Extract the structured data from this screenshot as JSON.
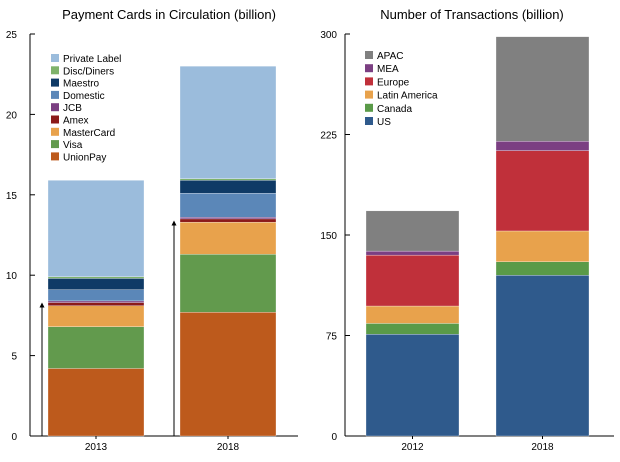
{
  "chart_data": [
    {
      "type": "bar",
      "stacked": true,
      "title": "Payment Cards in Circulation (billion)",
      "categories": [
        "2013",
        "2018"
      ],
      "ylim": [
        0,
        25
      ],
      "yticks": [
        0,
        5,
        10,
        15,
        20,
        25
      ],
      "grid": false,
      "legend_position": "top-left",
      "series": [
        {
          "name": "UnionPay",
          "color": "#bd5a1c",
          "values": [
            4.2,
            7.7
          ]
        },
        {
          "name": "Visa",
          "color": "#629a4d",
          "values": [
            2.6,
            3.6
          ]
        },
        {
          "name": "MasterCard",
          "color": "#e8a24c",
          "values": [
            1.3,
            2.0
          ]
        },
        {
          "name": "Amex",
          "color": "#8b1a1a",
          "values": [
            0.2,
            0.2
          ]
        },
        {
          "name": "JCB",
          "color": "#7b3f82",
          "values": [
            0.1,
            0.1
          ]
        },
        {
          "name": "Domestic",
          "color": "#5b87b8",
          "values": [
            0.7,
            1.5
          ]
        },
        {
          "name": "Maestro",
          "color": "#0f3a66",
          "values": [
            0.7,
            0.8
          ]
        },
        {
          "name": "Disc/Diners",
          "color": "#7fb36b",
          "values": [
            0.1,
            0.1
          ]
        },
        {
          "name": "Private Label",
          "color": "#9bbcdc",
          "values": [
            6.0,
            7.0
          ]
        }
      ],
      "legend_order": [
        "Private Label",
        "Disc/Diners",
        "Maestro",
        "Domestic",
        "JCB",
        "Amex",
        "MasterCard",
        "Visa",
        "UnionPay"
      ],
      "annotations": [
        {
          "type": "arrow",
          "category": "2013",
          "from": 0,
          "to": 8.3
        },
        {
          "type": "arrow",
          "category": "2018",
          "from": 0,
          "to": 13.4
        }
      ]
    },
    {
      "type": "bar",
      "stacked": true,
      "title": "Number of Transactions (billion)",
      "categories": [
        "2012",
        "2018"
      ],
      "ylim": [
        0,
        300
      ],
      "yticks": [
        0,
        75,
        150,
        225,
        300
      ],
      "grid": false,
      "legend_position": "top-left",
      "series": [
        {
          "name": "US",
          "color": "#2f5a8c",
          "values": [
            76,
            120
          ]
        },
        {
          "name": "Canada",
          "color": "#5a9a48",
          "values": [
            8,
            10
          ]
        },
        {
          "name": "Latin America",
          "color": "#e8a24c",
          "values": [
            13,
            23
          ]
        },
        {
          "name": "Europe",
          "color": "#c0303a",
          "values": [
            38,
            60
          ]
        },
        {
          "name": "MEA",
          "color": "#7b3f82",
          "values": [
            3,
            7
          ]
        },
        {
          "name": "APAC",
          "color": "#808080",
          "values": [
            30,
            78
          ]
        }
      ],
      "legend_order": [
        "APAC",
        "MEA",
        "Europe",
        "Latin America",
        "Canada",
        "US"
      ]
    }
  ]
}
